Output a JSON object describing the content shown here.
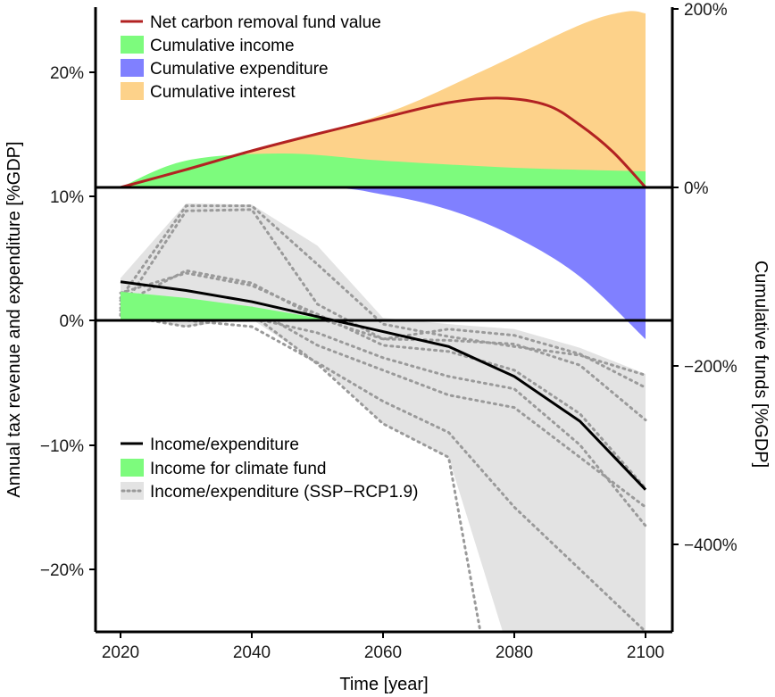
{
  "chart_data": [
    {
      "type": "area",
      "panel": "cumulative-funds",
      "x_values": [
        2020,
        2030,
        2040,
        2050,
        2060,
        2070,
        2078,
        2090,
        2100
      ],
      "y_right_label": "Cumulative funds [%GDP]",
      "ylim": [
        -200,
        200
      ],
      "y_ticks": [
        0,
        200
      ],
      "y_tick_labels": [
        "0%",
        "200%"
      ],
      "series": [
        {
          "name": "Net carbon removal fund value",
          "kind": "line",
          "color": "#b22222",
          "x": [
            2020,
            2030,
            2040,
            2050,
            2060,
            2070,
            2078,
            2085,
            2090,
            2095,
            2100
          ],
          "values": [
            0,
            20,
            41,
            60,
            78,
            95,
            100,
            92,
            70,
            40,
            0
          ]
        },
        {
          "name": "Cumulative income",
          "kind": "area",
          "color": "#7dfb7d",
          "x": [
            2020,
            2030,
            2045,
            2060,
            2080,
            2100
          ],
          "values": [
            0,
            30,
            38,
            30,
            22,
            18
          ]
        },
        {
          "name": "Cumulative expenditure",
          "kind": "area",
          "color": "#8080ff",
          "x": [
            2020,
            2050,
            2060,
            2070,
            2080,
            2090,
            2100
          ],
          "values": [
            0,
            0,
            -8,
            -25,
            -55,
            -100,
            -170
          ]
        },
        {
          "name": "Cumulative interest",
          "kind": "area",
          "color": "#fdd28a",
          "x": [
            2020,
            2040,
            2060,
            2075,
            2090,
            2097,
            2100
          ],
          "values": [
            0,
            40,
            82,
            130,
            182,
            197,
            195
          ]
        }
      ]
    },
    {
      "type": "line",
      "panel": "annual-flows",
      "x_label": "Time [year]",
      "y_label": "Annual tax revenue and expenditure [%GDP]",
      "xlim": [
        2016,
        2104
      ],
      "x_ticks": [
        2020,
        2040,
        2060,
        2080,
        2100
      ],
      "ylim": [
        -25,
        25
      ],
      "y_ticks": [
        -20,
        -10,
        0,
        10,
        20
      ],
      "y_tick_labels": [
        "−20%",
        "−10%",
        "0%",
        "10%",
        "20%"
      ],
      "series": [
        {
          "name": "Income/expenditure",
          "color": "#000000",
          "x": [
            2020,
            2030,
            2040,
            2050,
            2060,
            2070,
            2080,
            2090,
            2100
          ],
          "values": [
            3.1,
            2.4,
            1.5,
            0.3,
            -0.9,
            -2.1,
            -4.5,
            -8.1,
            -13.6
          ]
        },
        {
          "name": "Income for climate fund",
          "color": "#7dfb7d",
          "x": [
            2020,
            2030,
            2040,
            2050,
            2052
          ],
          "values": [
            2.3,
            1.8,
            1.1,
            0.2,
            0
          ]
        },
        {
          "name": "Income/expenditure (SSP−RCP1.9)",
          "color": "#e3e3e3",
          "band_x": [
            2020,
            2030,
            2040,
            2050,
            2060,
            2070,
            2080,
            2090,
            2100
          ],
          "band_upper": [
            3.4,
            9.4,
            9.3,
            6.0,
            0.2,
            -0.3,
            -0.7,
            -2.2,
            -4.3
          ],
          "band_lower": [
            0.4,
            -0.5,
            0.1,
            -3.4,
            -8.3,
            -11.0,
            -28,
            -28,
            -28
          ],
          "scenarios": [
            {
              "x": [
                2020,
                2030,
                2040,
                2050,
                2060,
                2070,
                2080,
                2090,
                2100
              ],
              "values": [
                1.8,
                9.2,
                9.2,
                4.5,
                -0.3,
                -1.3,
                -2.1,
                -2.8,
                -4.4
              ]
            },
            {
              "x": [
                2020,
                2030,
                2040,
                2050,
                2060,
                2070,
                2080,
                2090,
                2100
              ],
              "values": [
                0.8,
                8.8,
                8.9,
                1.3,
                -1.5,
                -0.7,
                -1.2,
                -2.7,
                -5.4
              ]
            },
            {
              "x": [
                2020,
                2030,
                2040,
                2050,
                2060,
                2070,
                2080,
                2090,
                2100
              ],
              "values": [
                1.3,
                4.0,
                3.0,
                0.2,
                -1.5,
                -1.6,
                -1.9,
                -3.6,
                -8.0
              ]
            },
            {
              "x": [
                2020,
                2030,
                2040,
                2050,
                2060,
                2070,
                2080,
                2090,
                2100
              ],
              "values": [
                2.2,
                3.8,
                2.8,
                0.5,
                -2.0,
                -2.5,
                -4.0,
                -7.5,
                -13.5
              ]
            },
            {
              "x": [
                2020,
                2030,
                2040,
                2050,
                2060,
                2070,
                2080,
                2090,
                2100
              ],
              "values": [
                0.5,
                1.2,
                0.2,
                -1.0,
                -3.0,
                -4.5,
                -5.5,
                -10.0,
                -16.5
              ]
            },
            {
              "x": [
                2020,
                2030,
                2040,
                2050,
                2060,
                2070,
                2080,
                2090,
                2100
              ],
              "values": [
                1.6,
                1.5,
                1.0,
                -2.0,
                -4.0,
                -6.0,
                -7.0,
                -11.0,
                -15.0
              ]
            },
            {
              "x": [
                2020,
                2030,
                2040,
                2050,
                2060,
                2070,
                2080,
                2090,
                2100
              ],
              "values": [
                1.0,
                0.0,
                -0.5,
                -3.4,
                -6.5,
                -9.0,
                -15.0,
                -20.0,
                -25.0
              ]
            },
            {
              "x": [
                2020,
                2030,
                2040,
                2050,
                2060,
                2070,
                2075,
                2100
              ],
              "values": [
                0.4,
                -0.5,
                0.5,
                -3.5,
                -8.3,
                -11.0,
                -25.5,
                -25.5
              ]
            }
          ]
        }
      ]
    }
  ],
  "legend_top": [
    {
      "label": "Net carbon removal fund value",
      "kind": "line",
      "color": "#b22222"
    },
    {
      "label": "Cumulative income",
      "kind": "patch",
      "color": "#7dfb7d"
    },
    {
      "label": "Cumulative expenditure",
      "kind": "patch",
      "color": "#8080ff"
    },
    {
      "label": "Cumulative interest",
      "kind": "patch",
      "color": "#fdd28a"
    }
  ],
  "legend_bottom": [
    {
      "label": "Income/expenditure",
      "kind": "line",
      "color": "#000000"
    },
    {
      "label": "Income for climate fund",
      "kind": "patch",
      "color": "#7dfb7d"
    },
    {
      "label": "Income/expenditure (SSP−RCP1.9)",
      "kind": "dotted-band",
      "color": "#e3e3e3"
    }
  ],
  "x_tick_labels": [
    "2020",
    "2040",
    "2060",
    "2080",
    "2100"
  ],
  "right_tick_labels": [
    "−400%",
    "−200%",
    "0%",
    "200%"
  ]
}
